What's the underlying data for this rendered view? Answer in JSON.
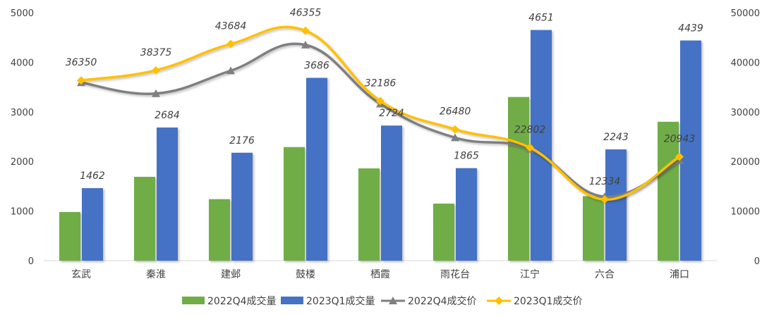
{
  "chart_data": {
    "type": "bar+line",
    "title": "",
    "categories": [
      "玄武",
      "秦淮",
      "建邺",
      "鼓楼",
      "栖霞",
      "雨花台",
      "江宁",
      "六合",
      "浦口"
    ],
    "y_left": {
      "range": [
        0,
        5000
      ],
      "ticks": [
        "0",
        "1000",
        "2000",
        "3000",
        "4000",
        "5000"
      ]
    },
    "y_right": {
      "range": [
        0,
        50000
      ],
      "ticks": [
        "0",
        "10000",
        "20000",
        "30000",
        "40000",
        "50000"
      ]
    },
    "grid": false,
    "legend_position": "bottom",
    "series": [
      {
        "name": "2022Q4成交量",
        "type": "bar",
        "axis": "left",
        "color": "#70ad47",
        "values": [
          980,
          1690,
          1240,
          2290,
          1860,
          1150,
          3300,
          1300,
          2800
        ],
        "labels": []
      },
      {
        "name": "2023Q1成交量",
        "type": "bar",
        "axis": "left",
        "color": "#4472c4",
        "values": [
          1462,
          2684,
          2176,
          3686,
          2724,
          1865,
          4651,
          2243,
          4439
        ],
        "labels": [
          "1462",
          "2684",
          "2176",
          "3686",
          "2724",
          "1865",
          "4651",
          "2243",
          "4439"
        ]
      },
      {
        "name": "2022Q4成交价",
        "type": "line",
        "axis": "right",
        "color": "#7f7f7f",
        "marker": "triangle",
        "values": [
          35900,
          33700,
          38300,
          43500,
          31600,
          24800,
          22500,
          12900,
          20200
        ],
        "labels": []
      },
      {
        "name": "2023Q1成交价",
        "type": "line",
        "axis": "right",
        "color": "#ffc000",
        "marker": "diamond",
        "values": [
          36350,
          38375,
          43684,
          46355,
          32186,
          26480,
          22802,
          12334,
          20943
        ],
        "labels": [
          "36350",
          "38375",
          "43684",
          "46355",
          "32186",
          "26480",
          "22802",
          "12334",
          "20943"
        ]
      }
    ]
  }
}
